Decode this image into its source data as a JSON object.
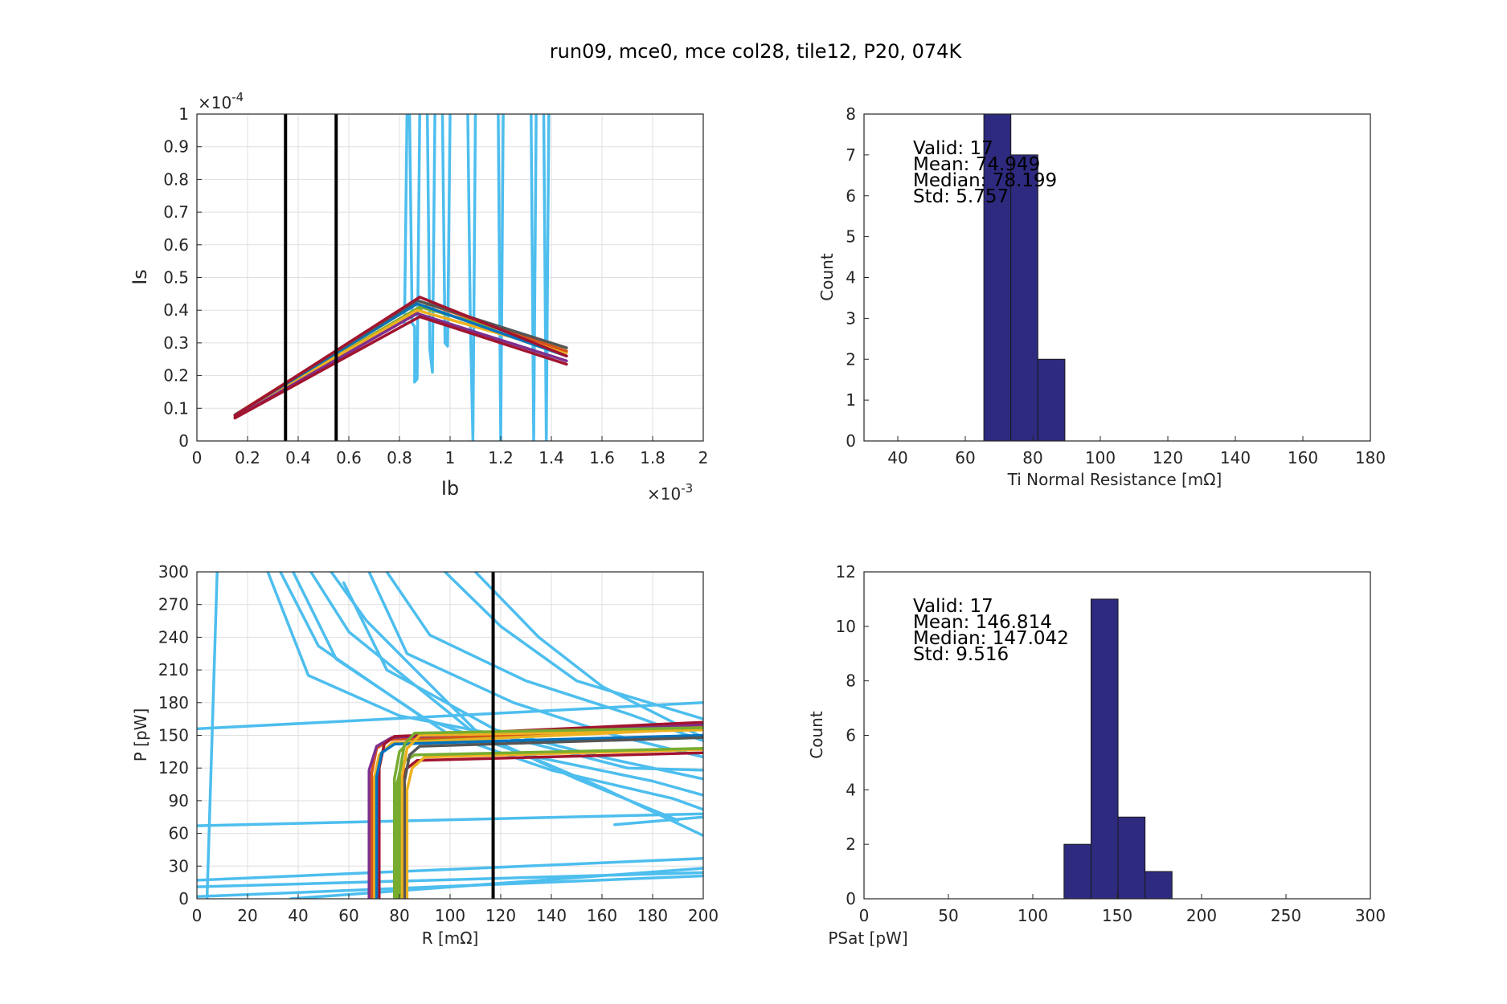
{
  "figure": {
    "title": "run09, mce0, mce col28, tile12, P20, 074K"
  },
  "chart_data": [
    {
      "id": "iv",
      "type": "line",
      "xlabel": "Ib",
      "ylabel": "Is",
      "x_exponent_label": "×10-3",
      "y_exponent_label": "×10-4",
      "xlim": [
        0,
        0.002
      ],
      "ylim": [
        0,
        0.0001
      ],
      "xtick_labels": [
        "0",
        "0.2",
        "0.4",
        "0.6",
        "0.8",
        "1",
        "1.2",
        "1.4",
        "1.6",
        "1.8",
        "2"
      ],
      "ytick_labels": [
        "0",
        "0.1",
        "0.2",
        "0.3",
        "0.4",
        "0.5",
        "0.6",
        "0.7",
        "0.8",
        "0.9",
        "1"
      ],
      "vertical_markers": [
        0.00035,
        0.00055
      ],
      "series": [
        {
          "color": "#4dbeee",
          "x": [
            0.00082,
            0.00083,
            0.00084,
            0.00085,
            0.00086,
            0.00086,
            0.00087,
            0.00088
          ],
          "y": [
            3.6e-05,
            0.0001,
            0.0001,
            3.6e-05,
            3.5e-05,
            1.8e-05,
            1.9e-05,
            0.0001
          ]
        },
        {
          "color": "#4dbeee",
          "x": [
            0.00091,
            0.00092,
            0.00093,
            0.00094
          ],
          "y": [
            0.0001,
            2.8e-05,
            2.1e-05,
            0.0001
          ]
        },
        {
          "color": "#4dbeee",
          "x": [
            0.00097,
            0.00098,
            0.00099,
            0.001
          ],
          "y": [
            0.0001,
            3e-05,
            2.9e-05,
            0.0001
          ]
        },
        {
          "color": "#4dbeee",
          "x": [
            0.00107,
            0.00108,
            0.00109,
            0.0011
          ],
          "y": [
            0.0001,
            3.6e-05,
            0.0,
            0.0001
          ]
        },
        {
          "color": "#4dbeee",
          "x": [
            0.00119,
            0.0012,
            0.00121
          ],
          "y": [
            0.0001,
            0.0,
            0.0001
          ]
        },
        {
          "color": "#4dbeee",
          "x": [
            0.00132,
            0.00133,
            0.00134
          ],
          "y": [
            0.0001,
            0.0,
            0.0001
          ]
        },
        {
          "color": "#4dbeee",
          "x": [
            0.00137,
            0.00138,
            0.00139
          ],
          "y": [
            0.0001,
            0.0,
            0.0001
          ]
        },
        {
          "color": "#77ac30",
          "x": [
            0.00015,
            0.00088,
            0.00146
          ],
          "y": [
            7.5e-06,
            4.1e-05,
            2.85e-05
          ]
        },
        {
          "color": "#77ac30",
          "x": [
            0.00015,
            0.00092,
            0.00146
          ],
          "y": [
            7.2e-06,
            4.2e-05,
            2.75e-05
          ]
        },
        {
          "color": "#edb120",
          "x": [
            0.00015,
            0.00087,
            0.00146
          ],
          "y": [
            7.5e-06,
            4.2e-05,
            2.6e-05
          ]
        },
        {
          "color": "#edb120",
          "x": [
            0.00015,
            0.00087,
            0.00146
          ],
          "y": [
            7.8e-06,
            4e-05,
            2.7e-05
          ]
        },
        {
          "color": "#d95319",
          "x": [
            0.00015,
            0.00087,
            0.00146
          ],
          "y": [
            8e-06,
            4.3e-05,
            2.75e-05
          ]
        },
        {
          "color": "#7e2f8e",
          "x": [
            0.00015,
            0.00087,
            0.00146
          ],
          "y": [
            7.1e-06,
            3.9e-05,
            2.45e-05
          ]
        },
        {
          "color": "#0072bd",
          "x": [
            0.00015,
            0.00087,
            0.00146
          ],
          "y": [
            7.9e-06,
            4.2e-05,
            2.6e-05
          ]
        },
        {
          "color": "#555555",
          "x": [
            0.00015,
            0.00087,
            0.00146
          ],
          "y": [
            7.8e-06,
            4.3e-05,
            2.85e-05
          ]
        },
        {
          "color": "#a2142f",
          "x": [
            0.00015,
            0.00088,
            0.00146
          ],
          "y": [
            7e-06,
            3.8e-05,
            2.35e-05
          ]
        },
        {
          "color": "#a2142f",
          "x": [
            0.00015,
            0.00088,
            0.00146
          ],
          "y": [
            7.8e-06,
            4.4e-05,
            2.6e-05
          ]
        }
      ]
    },
    {
      "id": "hist-rn",
      "type": "bar",
      "xlabel": "Ti Normal Resistance [mΩ]",
      "ylabel": "Count",
      "xlim": [
        30,
        180
      ],
      "ylim": [
        0,
        8
      ],
      "xtick_labels": [
        "40",
        "60",
        "80",
        "100",
        "120",
        "140",
        "160",
        "180"
      ],
      "ytick_labels": [
        "0",
        "1",
        "2",
        "3",
        "4",
        "5",
        "6",
        "7",
        "8"
      ],
      "bar_color": "#2e2a7f",
      "bins": [
        [
          65.5,
          73.5
        ],
        [
          73.5,
          81.5
        ],
        [
          81.5,
          89.5
        ]
      ],
      "values": [
        8,
        7,
        2
      ],
      "stats": [
        "Valid: 17",
        "Mean: 74.949",
        "Median: 78.199",
        "Std: 5.757"
      ]
    },
    {
      "id": "pr",
      "type": "line",
      "xlabel": "R [mΩ]",
      "ylabel": "P [pW]",
      "xlim": [
        0,
        200
      ],
      "ylim": [
        0,
        300
      ],
      "xtick_labels": [
        "0",
        "20",
        "40",
        "60",
        "80",
        "100",
        "120",
        "140",
        "160",
        "180",
        "200"
      ],
      "ytick_labels": [
        "0",
        "30",
        "60",
        "90",
        "120",
        "150",
        "180",
        "210",
        "240",
        "270",
        "300"
      ],
      "vertical_markers": [
        117
      ],
      "series": [
        {
          "color": "#4dbeee",
          "x": [
            4,
            8
          ],
          "y": [
            0,
            300
          ]
        },
        {
          "color": "#4dbeee",
          "x": [
            0,
            200
          ],
          "y": [
            156,
            180
          ]
        },
        {
          "color": "#4dbeee",
          "x": [
            0,
            200
          ],
          "y": [
            67,
            78
          ]
        },
        {
          "color": "#4dbeee",
          "x": [
            0,
            200
          ],
          "y": [
            17,
            37
          ]
        },
        {
          "color": "#4dbeee",
          "x": [
            0,
            200
          ],
          "y": [
            11,
            24
          ]
        },
        {
          "color": "#4dbeee",
          "x": [
            0,
            200
          ],
          "y": [
            2,
            21
          ]
        },
        {
          "color": "#4dbeee",
          "x": [
            37,
            200
          ],
          "y": [
            0,
            28
          ]
        },
        {
          "color": "#4dbeee",
          "x": [
            28,
            44,
            80,
            120,
            170,
            200
          ],
          "y": [
            300,
            205,
            168,
            150,
            120,
            118
          ]
        },
        {
          "color": "#4dbeee",
          "x": [
            33,
            48,
            90,
            130,
            180,
            200
          ],
          "y": [
            300,
            232,
            165,
            132,
            108,
            95
          ]
        },
        {
          "color": "#4dbeee",
          "x": [
            38,
            55,
            100,
            140,
            188,
            200
          ],
          "y": [
            300,
            220,
            150,
            118,
            92,
            82
          ]
        },
        {
          "color": "#4dbeee",
          "x": [
            45,
            60,
            108,
            150,
            190
          ],
          "y": [
            300,
            245,
            155,
            110,
            72
          ]
        },
        {
          "color": "#4dbeee",
          "x": [
            53,
            67,
            112,
            160,
            200
          ],
          "y": [
            300,
            255,
            150,
            102,
            58
          ]
        },
        {
          "color": "#4dbeee",
          "x": [
            58,
            75,
            118,
            160,
            200
          ],
          "y": [
            290,
            210,
            155,
            130,
            110
          ]
        },
        {
          "color": "#4dbeee",
          "x": [
            68,
            83,
            125,
            165,
            200
          ],
          "y": [
            300,
            225,
            180,
            150,
            130
          ]
        },
        {
          "color": "#4dbeee",
          "x": [
            75,
            92,
            130,
            170,
            200
          ],
          "y": [
            300,
            242,
            200,
            170,
            145
          ]
        },
        {
          "color": "#4dbeee",
          "x": [
            98,
            120,
            150,
            200
          ],
          "y": [
            300,
            250,
            200,
            165
          ]
        },
        {
          "color": "#4dbeee",
          "x": [
            110,
            135,
            160,
            200
          ],
          "y": [
            300,
            240,
            195,
            148
          ]
        },
        {
          "color": "#4dbeee",
          "x": [
            165,
            200
          ],
          "y": [
            68,
            75
          ]
        },
        {
          "color": "#a2142f",
          "x": [
            80,
            80,
            82,
            87,
            200
          ],
          "y": [
            0,
            100,
            118,
            127,
            134
          ]
        },
        {
          "color": "#edb120",
          "x": [
            83,
            83,
            85,
            90,
            200
          ],
          "y": [
            0,
            100,
            120,
            130,
            137
          ]
        },
        {
          "color": "#77ac30",
          "x": [
            78,
            78,
            80,
            84,
            200
          ],
          "y": [
            0,
            110,
            135,
            145,
            160
          ]
        },
        {
          "color": "#77ac30",
          "x": [
            79,
            79,
            81,
            86,
            200
          ],
          "y": [
            0,
            105,
            125,
            132,
            138
          ]
        },
        {
          "color": "#edb120",
          "x": [
            70,
            70,
            72,
            77,
            200
          ],
          "y": [
            0,
            110,
            132,
            143,
            156
          ]
        },
        {
          "color": "#d95319",
          "x": [
            69,
            69,
            71,
            76,
            200
          ],
          "y": [
            0,
            115,
            138,
            146,
            158
          ]
        },
        {
          "color": "#7e2f8e",
          "x": [
            68,
            68,
            71,
            77,
            200
          ],
          "y": [
            0,
            118,
            140,
            148,
            160
          ]
        },
        {
          "color": "#a2142f",
          "x": [
            72,
            72,
            74,
            78,
            200
          ],
          "y": [
            0,
            120,
            142,
            149,
            162
          ]
        },
        {
          "color": "#0072bd",
          "x": [
            71,
            71,
            73,
            78,
            200
          ],
          "y": [
            0,
            112,
            134,
            142,
            150
          ]
        },
        {
          "color": "#555555",
          "x": [
            82,
            82,
            84,
            88,
            200
          ],
          "y": [
            0,
            108,
            132,
            140,
            148
          ]
        },
        {
          "color": "#edb120",
          "x": [
            81,
            81,
            83,
            88,
            200
          ],
          "y": [
            0,
            112,
            138,
            150,
            155
          ]
        },
        {
          "color": "#77ac30",
          "x": [
            80,
            80,
            82,
            86,
            200
          ],
          "y": [
            0,
            115,
            142,
            152,
            157
          ]
        }
      ]
    },
    {
      "id": "hist-psat",
      "type": "bar",
      "xlabel": "PSat [pW]",
      "ylabel": "Count",
      "xlim": [
        0,
        300
      ],
      "ylim": [
        0,
        12
      ],
      "xtick_labels": [
        "0",
        "50",
        "100",
        "150",
        "200",
        "250",
        "300"
      ],
      "ytick_labels": [
        "0",
        "2",
        "4",
        "6",
        "8",
        "10",
        "12"
      ],
      "bar_color": "#2e2a7f",
      "bins": [
        [
          118.5,
          134.5
        ],
        [
          134.5,
          150.5
        ],
        [
          150.5,
          166.5
        ],
        [
          166.5,
          182.5
        ]
      ],
      "values": [
        2,
        11,
        3,
        1
      ],
      "stats": [
        "Valid: 17",
        "Mean: 146.814",
        "Median: 147.042",
        "Std: 9.516"
      ]
    }
  ]
}
